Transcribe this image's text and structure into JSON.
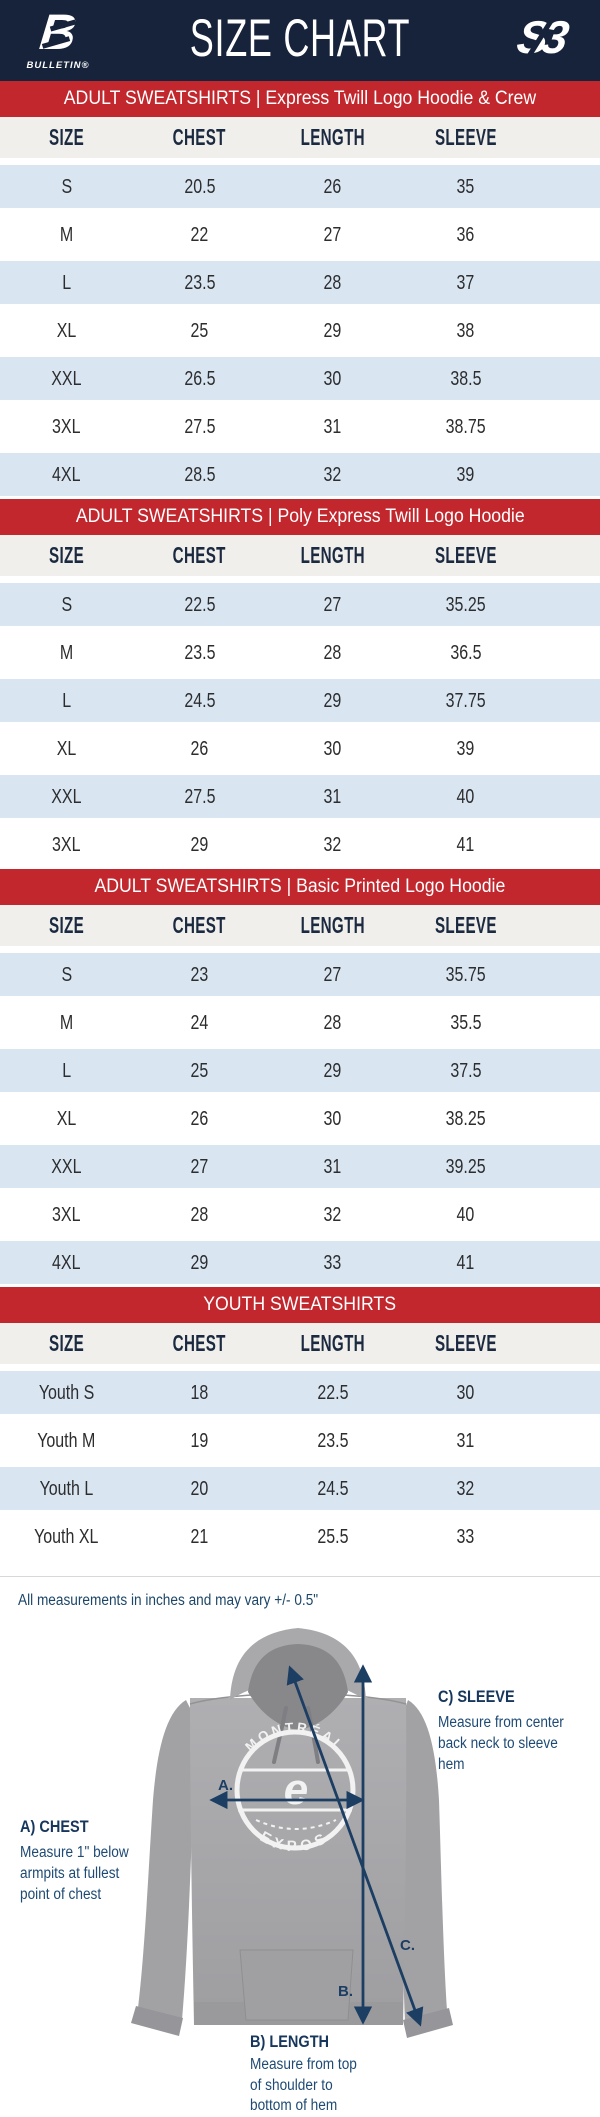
{
  "header": {
    "title": "SIZE CHART",
    "brand_left": "BULLETIN®",
    "brand_left_letter": "B",
    "brand_right": "S3"
  },
  "columns": [
    "SIZE",
    "CHEST",
    "LENGTH",
    "SLEEVE"
  ],
  "sections": [
    {
      "banner": "ADULT SWEATSHIRTS | Express Twill Logo Hoodie & Crew",
      "rows": [
        [
          "S",
          "20.5",
          "26",
          "35"
        ],
        [
          "M",
          "22",
          "27",
          "36"
        ],
        [
          "L",
          "23.5",
          "28",
          "37"
        ],
        [
          "XL",
          "25",
          "29",
          "38"
        ],
        [
          "XXL",
          "26.5",
          "30",
          "38.5"
        ],
        [
          "3XL",
          "27.5",
          "31",
          "38.75"
        ],
        [
          "4XL",
          "28.5",
          "32",
          "39"
        ]
      ]
    },
    {
      "banner": "ADULT SWEATSHIRTS | Poly Express Twill Logo Hoodie",
      "rows": [
        [
          "S",
          "22.5",
          "27",
          "35.25"
        ],
        [
          "M",
          "23.5",
          "28",
          "36.5"
        ],
        [
          "L",
          "24.5",
          "29",
          "37.75"
        ],
        [
          "XL",
          "26",
          "30",
          "39"
        ],
        [
          "XXL",
          "27.5",
          "31",
          "40"
        ],
        [
          "3XL",
          "29",
          "32",
          "41"
        ]
      ]
    },
    {
      "banner": "ADULT SWEATSHIRTS | Basic Printed Logo Hoodie",
      "rows": [
        [
          "S",
          "23",
          "27",
          "35.75"
        ],
        [
          "M",
          "24",
          "28",
          "35.5"
        ],
        [
          "L",
          "25",
          "29",
          "37.5"
        ],
        [
          "XL",
          "26",
          "30",
          "38.25"
        ],
        [
          "XXL",
          "27",
          "31",
          "39.25"
        ],
        [
          "3XL",
          "28",
          "32",
          "40"
        ],
        [
          "4XL",
          "29",
          "33",
          "41"
        ]
      ]
    },
    {
      "banner": "YOUTH SWEATSHIRTS",
      "rows": [
        [
          "Youth S",
          "18",
          "22.5",
          "30"
        ],
        [
          "Youth M",
          "19",
          "23.5",
          "31"
        ],
        [
          "Youth L",
          "20",
          "24.5",
          "32"
        ],
        [
          "Youth XL",
          "21",
          "25.5",
          "33"
        ]
      ]
    }
  ],
  "footnote": "All measurements in inches and may vary +/- 0.5\"",
  "diagram": {
    "hoodie_logo": {
      "arc_top": "MONTRÉAL",
      "arc_bottom": "EXPOS",
      "center_glyph": "e"
    },
    "chest": {
      "marker": "A.",
      "title": "A) CHEST",
      "desc": "Measure 1\" below\narmpits at fullest\npoint of chest"
    },
    "length": {
      "marker": "B.",
      "title": "B) LENGTH",
      "desc": "Measure from top\nof shoulder to\nbottom of hem"
    },
    "sleeve": {
      "marker": "C.",
      "title": "C) SLEEVE",
      "desc": "Measure from center\nback neck to sleeve hem"
    }
  },
  "colors": {
    "navy": "#16233a",
    "red": "#c1272d",
    "row_blue": "#d9e6f2",
    "header_row_grey": "#f0efeb",
    "annotation_blue": "#1e4a74",
    "arrow_navy": "#1c3e63",
    "hoodie_grey": "#a7a7aa"
  }
}
